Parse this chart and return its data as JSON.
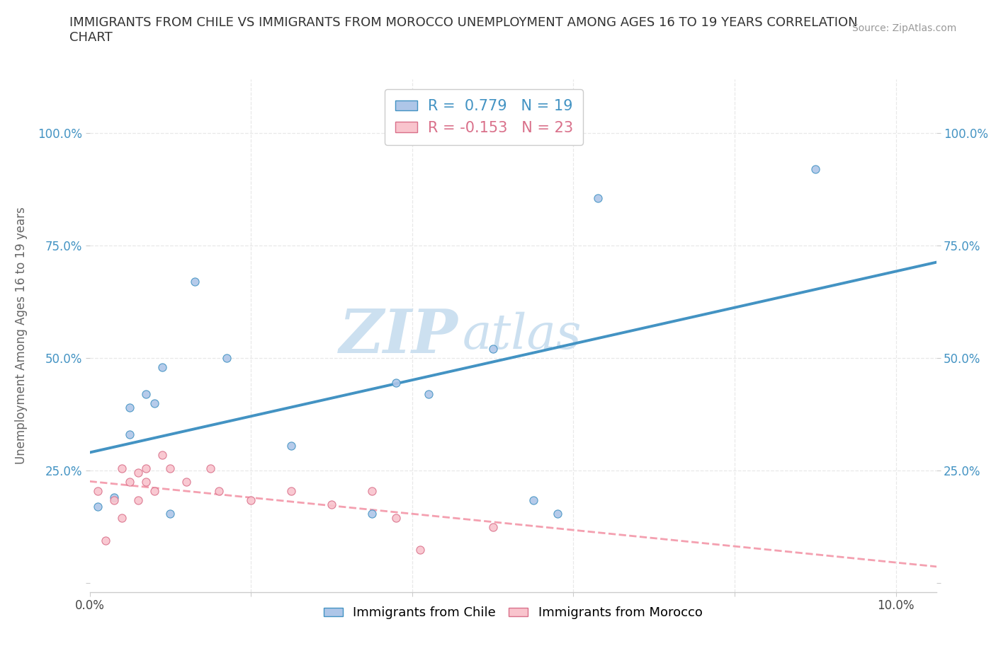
{
  "title": "IMMIGRANTS FROM CHILE VS IMMIGRANTS FROM MOROCCO UNEMPLOYMENT AMONG AGES 16 TO 19 YEARS CORRELATION\nCHART",
  "source": "Source: ZipAtlas.com",
  "ylabel": "Unemployment Among Ages 16 to 19 years",
  "xlim": [
    0.0,
    0.105
  ],
  "ylim": [
    -0.02,
    1.12
  ],
  "xticks": [
    0.0,
    0.02,
    0.04,
    0.06,
    0.08,
    0.1
  ],
  "yticks": [
    0.0,
    0.25,
    0.5,
    0.75,
    1.0
  ],
  "yticklabels": [
    "",
    "25.0%",
    "50.0%",
    "75.0%",
    "100.0%"
  ],
  "chile_scatter": [
    [
      0.001,
      0.17
    ],
    [
      0.003,
      0.19
    ],
    [
      0.005,
      0.33
    ],
    [
      0.005,
      0.39
    ],
    [
      0.007,
      0.42
    ],
    [
      0.008,
      0.4
    ],
    [
      0.009,
      0.48
    ],
    [
      0.01,
      0.155
    ],
    [
      0.013,
      0.67
    ],
    [
      0.017,
      0.5
    ],
    [
      0.025,
      0.305
    ],
    [
      0.035,
      0.155
    ],
    [
      0.038,
      0.445
    ],
    [
      0.042,
      0.42
    ],
    [
      0.05,
      0.52
    ],
    [
      0.058,
      0.155
    ],
    [
      0.063,
      0.855
    ],
    [
      0.09,
      0.92
    ],
    [
      0.055,
      0.185
    ]
  ],
  "morocco_scatter": [
    [
      0.001,
      0.205
    ],
    [
      0.002,
      0.095
    ],
    [
      0.003,
      0.185
    ],
    [
      0.004,
      0.255
    ],
    [
      0.004,
      0.145
    ],
    [
      0.005,
      0.225
    ],
    [
      0.006,
      0.245
    ],
    [
      0.006,
      0.185
    ],
    [
      0.007,
      0.255
    ],
    [
      0.007,
      0.225
    ],
    [
      0.008,
      0.205
    ],
    [
      0.009,
      0.285
    ],
    [
      0.01,
      0.255
    ],
    [
      0.012,
      0.225
    ],
    [
      0.015,
      0.255
    ],
    [
      0.016,
      0.205
    ],
    [
      0.02,
      0.185
    ],
    [
      0.025,
      0.205
    ],
    [
      0.03,
      0.175
    ],
    [
      0.035,
      0.205
    ],
    [
      0.038,
      0.145
    ],
    [
      0.041,
      0.075
    ],
    [
      0.05,
      0.125
    ]
  ],
  "chile_fill_color": "#aec6e8",
  "chile_edge_color": "#4393c3",
  "morocco_fill_color": "#f9c4cd",
  "morocco_edge_color": "#d9708a",
  "chile_line_color": "#4393c3",
  "morocco_line_color": "#f4a0b0",
  "R_chile": 0.779,
  "N_chile": 19,
  "R_morocco": -0.153,
  "N_morocco": 23,
  "watermark_zip_color": "#cce0f0",
  "watermark_atlas_color": "#cce0f0",
  "background_color": "#ffffff",
  "grid_color": "#e8e8e8",
  "title_fontsize": 13,
  "axis_label_fontsize": 12,
  "tick_fontsize": 12
}
